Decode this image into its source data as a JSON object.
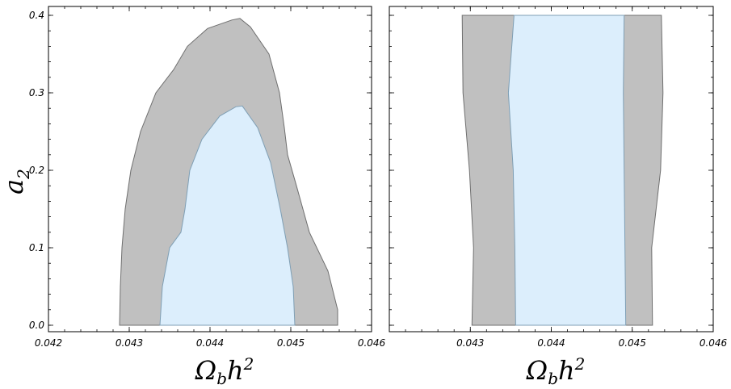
{
  "chart_data": [
    {
      "type": "area",
      "title": "",
      "xlabel": "Ω_b h^2",
      "ylabel": "a_2",
      "xlim": [
        0.042,
        0.046
      ],
      "ylim": [
        0.0,
        0.4
      ],
      "x_ticks": [
        0.042,
        0.043,
        0.044,
        0.045,
        0.046
      ],
      "x_tick_labels": [
        "0.042",
        "0.043",
        "0.044",
        "0.045",
        "0.046"
      ],
      "y_ticks": [
        0.0,
        0.1,
        0.2,
        0.3,
        0.4
      ],
      "y_tick_labels": [
        "0.0",
        "0.1",
        "0.2",
        "0.3",
        "0.4"
      ],
      "grid": false,
      "legend": "none",
      "series": [
        {
          "color": "#c0c0c0",
          "points": [
            [
              0.04288,
              0.0
            ],
            [
              0.04289,
              0.05
            ],
            [
              0.04291,
              0.1
            ],
            [
              0.04295,
              0.15
            ],
            [
              0.04302,
              0.2
            ],
            [
              0.04314,
              0.25
            ],
            [
              0.04333,
              0.3
            ],
            [
              0.04355,
              0.33
            ],
            [
              0.04372,
              0.36
            ],
            [
              0.04397,
              0.383
            ],
            [
              0.04427,
              0.394
            ],
            [
              0.04437,
              0.396
            ],
            [
              0.0445,
              0.385
            ],
            [
              0.04473,
              0.35
            ],
            [
              0.04486,
              0.3
            ],
            [
              0.04492,
              0.255
            ],
            [
              0.04496,
              0.22
            ],
            [
              0.04507,
              0.18
            ],
            [
              0.04523,
              0.12
            ],
            [
              0.04546,
              0.07
            ],
            [
              0.04558,
              0.02
            ],
            [
              0.04558,
              0.0
            ]
          ]
        },
        {
          "color": "#dceefc",
          "points": [
            [
              0.04338,
              0.0
            ],
            [
              0.04341,
              0.05
            ],
            [
              0.0435,
              0.1
            ],
            [
              0.04364,
              0.12
            ],
            [
              0.04369,
              0.15
            ],
            [
              0.04375,
              0.2
            ],
            [
              0.0439,
              0.24
            ],
            [
              0.04412,
              0.27
            ],
            [
              0.04432,
              0.282
            ],
            [
              0.0444,
              0.283
            ],
            [
              0.04459,
              0.255
            ],
            [
              0.04475,
              0.21
            ],
            [
              0.04487,
              0.15
            ],
            [
              0.04496,
              0.1
            ],
            [
              0.04503,
              0.05
            ],
            [
              0.04505,
              0.0
            ]
          ]
        }
      ]
    },
    {
      "type": "area",
      "title": "",
      "xlabel": "Ω_b h^2",
      "ylabel": "",
      "xlim": [
        0.042,
        0.046
      ],
      "ylim": [
        0.0,
        0.4
      ],
      "x_ticks": [
        0.043,
        0.044,
        0.045,
        0.046
      ],
      "x_tick_labels": [
        "0.043",
        "0.044",
        "0.045",
        "0.046"
      ],
      "grid": false,
      "legend": "none",
      "series": [
        {
          "color": "#c0c0c0",
          "left_edge": [
            [
              0.04302,
              0.0
            ],
            [
              0.04304,
              0.1
            ],
            [
              0.04299,
              0.2
            ],
            [
              0.04291,
              0.3
            ],
            [
              0.0429,
              0.4
            ]
          ],
          "right_edge": [
            [
              0.04525,
              0.0
            ],
            [
              0.04524,
              0.1
            ],
            [
              0.04535,
              0.2
            ],
            [
              0.04538,
              0.3
            ],
            [
              0.04536,
              0.4
            ]
          ]
        },
        {
          "color": "#dceefc",
          "left_edge": [
            [
              0.04356,
              0.0
            ],
            [
              0.04355,
              0.1
            ],
            [
              0.04353,
              0.2
            ],
            [
              0.04347,
              0.3
            ],
            [
              0.04354,
              0.4
            ]
          ],
          "right_edge": [
            [
              0.04492,
              0.0
            ],
            [
              0.04491,
              0.1
            ],
            [
              0.0449,
              0.2
            ],
            [
              0.04489,
              0.3
            ],
            [
              0.0449,
              0.4
            ]
          ]
        }
      ]
    }
  ]
}
